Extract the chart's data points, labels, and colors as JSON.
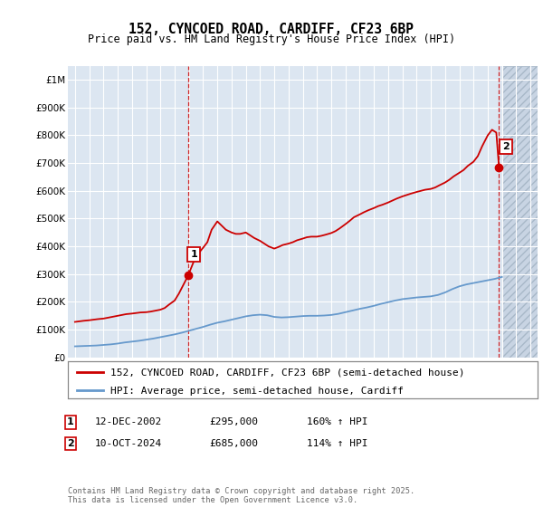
{
  "title_line1": "152, CYNCOED ROAD, CARDIFF, CF23 6BP",
  "title_line2": "Price paid vs. HM Land Registry's House Price Index (HPI)",
  "bg_color": "#ffffff",
  "plot_bg_color": "#dce6f1",
  "grid_color": "#ffffff",
  "red_line_color": "#cc0000",
  "blue_line_color": "#6699cc",
  "hatch_bg_color": "#c8d4e3",
  "marker1_x": 2002.95,
  "marker1_y": 295000,
  "marker2_x": 2024.79,
  "marker2_y": 685000,
  "legend_line1": "152, CYNCOED ROAD, CARDIFF, CF23 6BP (semi-detached house)",
  "legend_line2": "HPI: Average price, semi-detached house, Cardiff",
  "annotation1_date": "12-DEC-2002",
  "annotation1_price": "£295,000",
  "annotation1_hpi": "160% ↑ HPI",
  "annotation2_date": "10-OCT-2024",
  "annotation2_price": "£685,000",
  "annotation2_hpi": "114% ↑ HPI",
  "footer": "Contains HM Land Registry data © Crown copyright and database right 2025.\nThis data is licensed under the Open Government Licence v3.0.",
  "xlim": [
    1994.5,
    2027.5
  ],
  "ylim": [
    0,
    1050000
  ],
  "yticks": [
    0,
    100000,
    200000,
    300000,
    400000,
    500000,
    600000,
    700000,
    800000,
    900000,
    1000000
  ],
  "ytick_labels": [
    "£0",
    "£100K",
    "£200K",
    "£300K",
    "£400K",
    "£500K",
    "£600K",
    "£700K",
    "£800K",
    "£900K",
    "£1M"
  ],
  "xticks": [
    1995,
    1996,
    1997,
    1998,
    1999,
    2000,
    2001,
    2002,
    2003,
    2004,
    2005,
    2006,
    2007,
    2008,
    2009,
    2010,
    2011,
    2012,
    2013,
    2014,
    2015,
    2016,
    2017,
    2018,
    2019,
    2020,
    2021,
    2022,
    2023,
    2024,
    2025,
    2026,
    2027
  ],
  "red_x": [
    1995.0,
    1995.3,
    1995.6,
    1996.0,
    1996.3,
    1996.6,
    1997.0,
    1997.3,
    1997.6,
    1998.0,
    1998.3,
    1998.6,
    1999.0,
    1999.3,
    1999.6,
    2000.0,
    2000.3,
    2000.6,
    2001.0,
    2001.3,
    2001.6,
    2002.0,
    2002.3,
    2002.6,
    2002.95,
    2003.3,
    2003.6,
    2004.0,
    2004.3,
    2004.6,
    2005.0,
    2005.3,
    2005.6,
    2006.0,
    2006.3,
    2006.6,
    2007.0,
    2007.3,
    2007.6,
    2008.0,
    2008.3,
    2008.6,
    2009.0,
    2009.3,
    2009.6,
    2010.0,
    2010.3,
    2010.6,
    2011.0,
    2011.3,
    2011.6,
    2012.0,
    2012.3,
    2012.6,
    2013.0,
    2013.3,
    2013.6,
    2014.0,
    2014.3,
    2014.6,
    2015.0,
    2015.3,
    2015.6,
    2016.0,
    2016.3,
    2016.6,
    2017.0,
    2017.3,
    2017.6,
    2018.0,
    2018.3,
    2018.6,
    2019.0,
    2019.3,
    2019.6,
    2020.0,
    2020.3,
    2020.6,
    2021.0,
    2021.3,
    2021.6,
    2022.0,
    2022.3,
    2022.6,
    2023.0,
    2023.3,
    2023.6,
    2024.0,
    2024.3,
    2024.6,
    2024.79
  ],
  "red_y": [
    128000,
    130000,
    132000,
    134000,
    136000,
    138000,
    140000,
    143000,
    146000,
    150000,
    153000,
    156000,
    158000,
    160000,
    162000,
    163000,
    165000,
    168000,
    172000,
    178000,
    190000,
    205000,
    230000,
    260000,
    295000,
    340000,
    370000,
    395000,
    415000,
    460000,
    490000,
    475000,
    460000,
    450000,
    445000,
    445000,
    450000,
    440000,
    430000,
    420000,
    410000,
    400000,
    392000,
    398000,
    405000,
    410000,
    415000,
    422000,
    428000,
    433000,
    435000,
    435000,
    438000,
    442000,
    448000,
    455000,
    465000,
    480000,
    492000,
    505000,
    515000,
    523000,
    530000,
    538000,
    545000,
    550000,
    558000,
    565000,
    572000,
    580000,
    585000,
    590000,
    596000,
    600000,
    604000,
    607000,
    612000,
    620000,
    630000,
    640000,
    652000,
    665000,
    675000,
    690000,
    705000,
    725000,
    760000,
    800000,
    820000,
    810000,
    685000
  ],
  "blue_x": [
    1995.0,
    1995.5,
    1996.0,
    1996.5,
    1997.0,
    1997.5,
    1998.0,
    1998.5,
    1999.0,
    1999.5,
    2000.0,
    2000.5,
    2001.0,
    2001.5,
    2002.0,
    2002.5,
    2003.0,
    2003.5,
    2004.0,
    2004.5,
    2005.0,
    2005.5,
    2006.0,
    2006.5,
    2007.0,
    2007.5,
    2008.0,
    2008.5,
    2009.0,
    2009.5,
    2010.0,
    2010.5,
    2011.0,
    2011.5,
    2012.0,
    2012.5,
    2013.0,
    2013.5,
    2014.0,
    2014.5,
    2015.0,
    2015.5,
    2016.0,
    2016.5,
    2017.0,
    2017.5,
    2018.0,
    2018.5,
    2019.0,
    2019.5,
    2020.0,
    2020.5,
    2021.0,
    2021.5,
    2022.0,
    2022.5,
    2023.0,
    2023.5,
    2024.0,
    2024.5,
    2025.0
  ],
  "blue_y": [
    40000,
    41000,
    42000,
    43000,
    45000,
    47000,
    50000,
    54000,
    57000,
    60000,
    64000,
    68000,
    73000,
    78000,
    83000,
    89000,
    96000,
    103000,
    110000,
    118000,
    125000,
    130000,
    136000,
    142000,
    148000,
    152000,
    154000,
    152000,
    146000,
    144000,
    145000,
    147000,
    149000,
    150000,
    150000,
    151000,
    153000,
    157000,
    163000,
    169000,
    175000,
    180000,
    186000,
    193000,
    199000,
    205000,
    210000,
    213000,
    216000,
    218000,
    220000,
    225000,
    234000,
    246000,
    256000,
    263000,
    268000,
    273000,
    278000,
    283000,
    290000
  ]
}
